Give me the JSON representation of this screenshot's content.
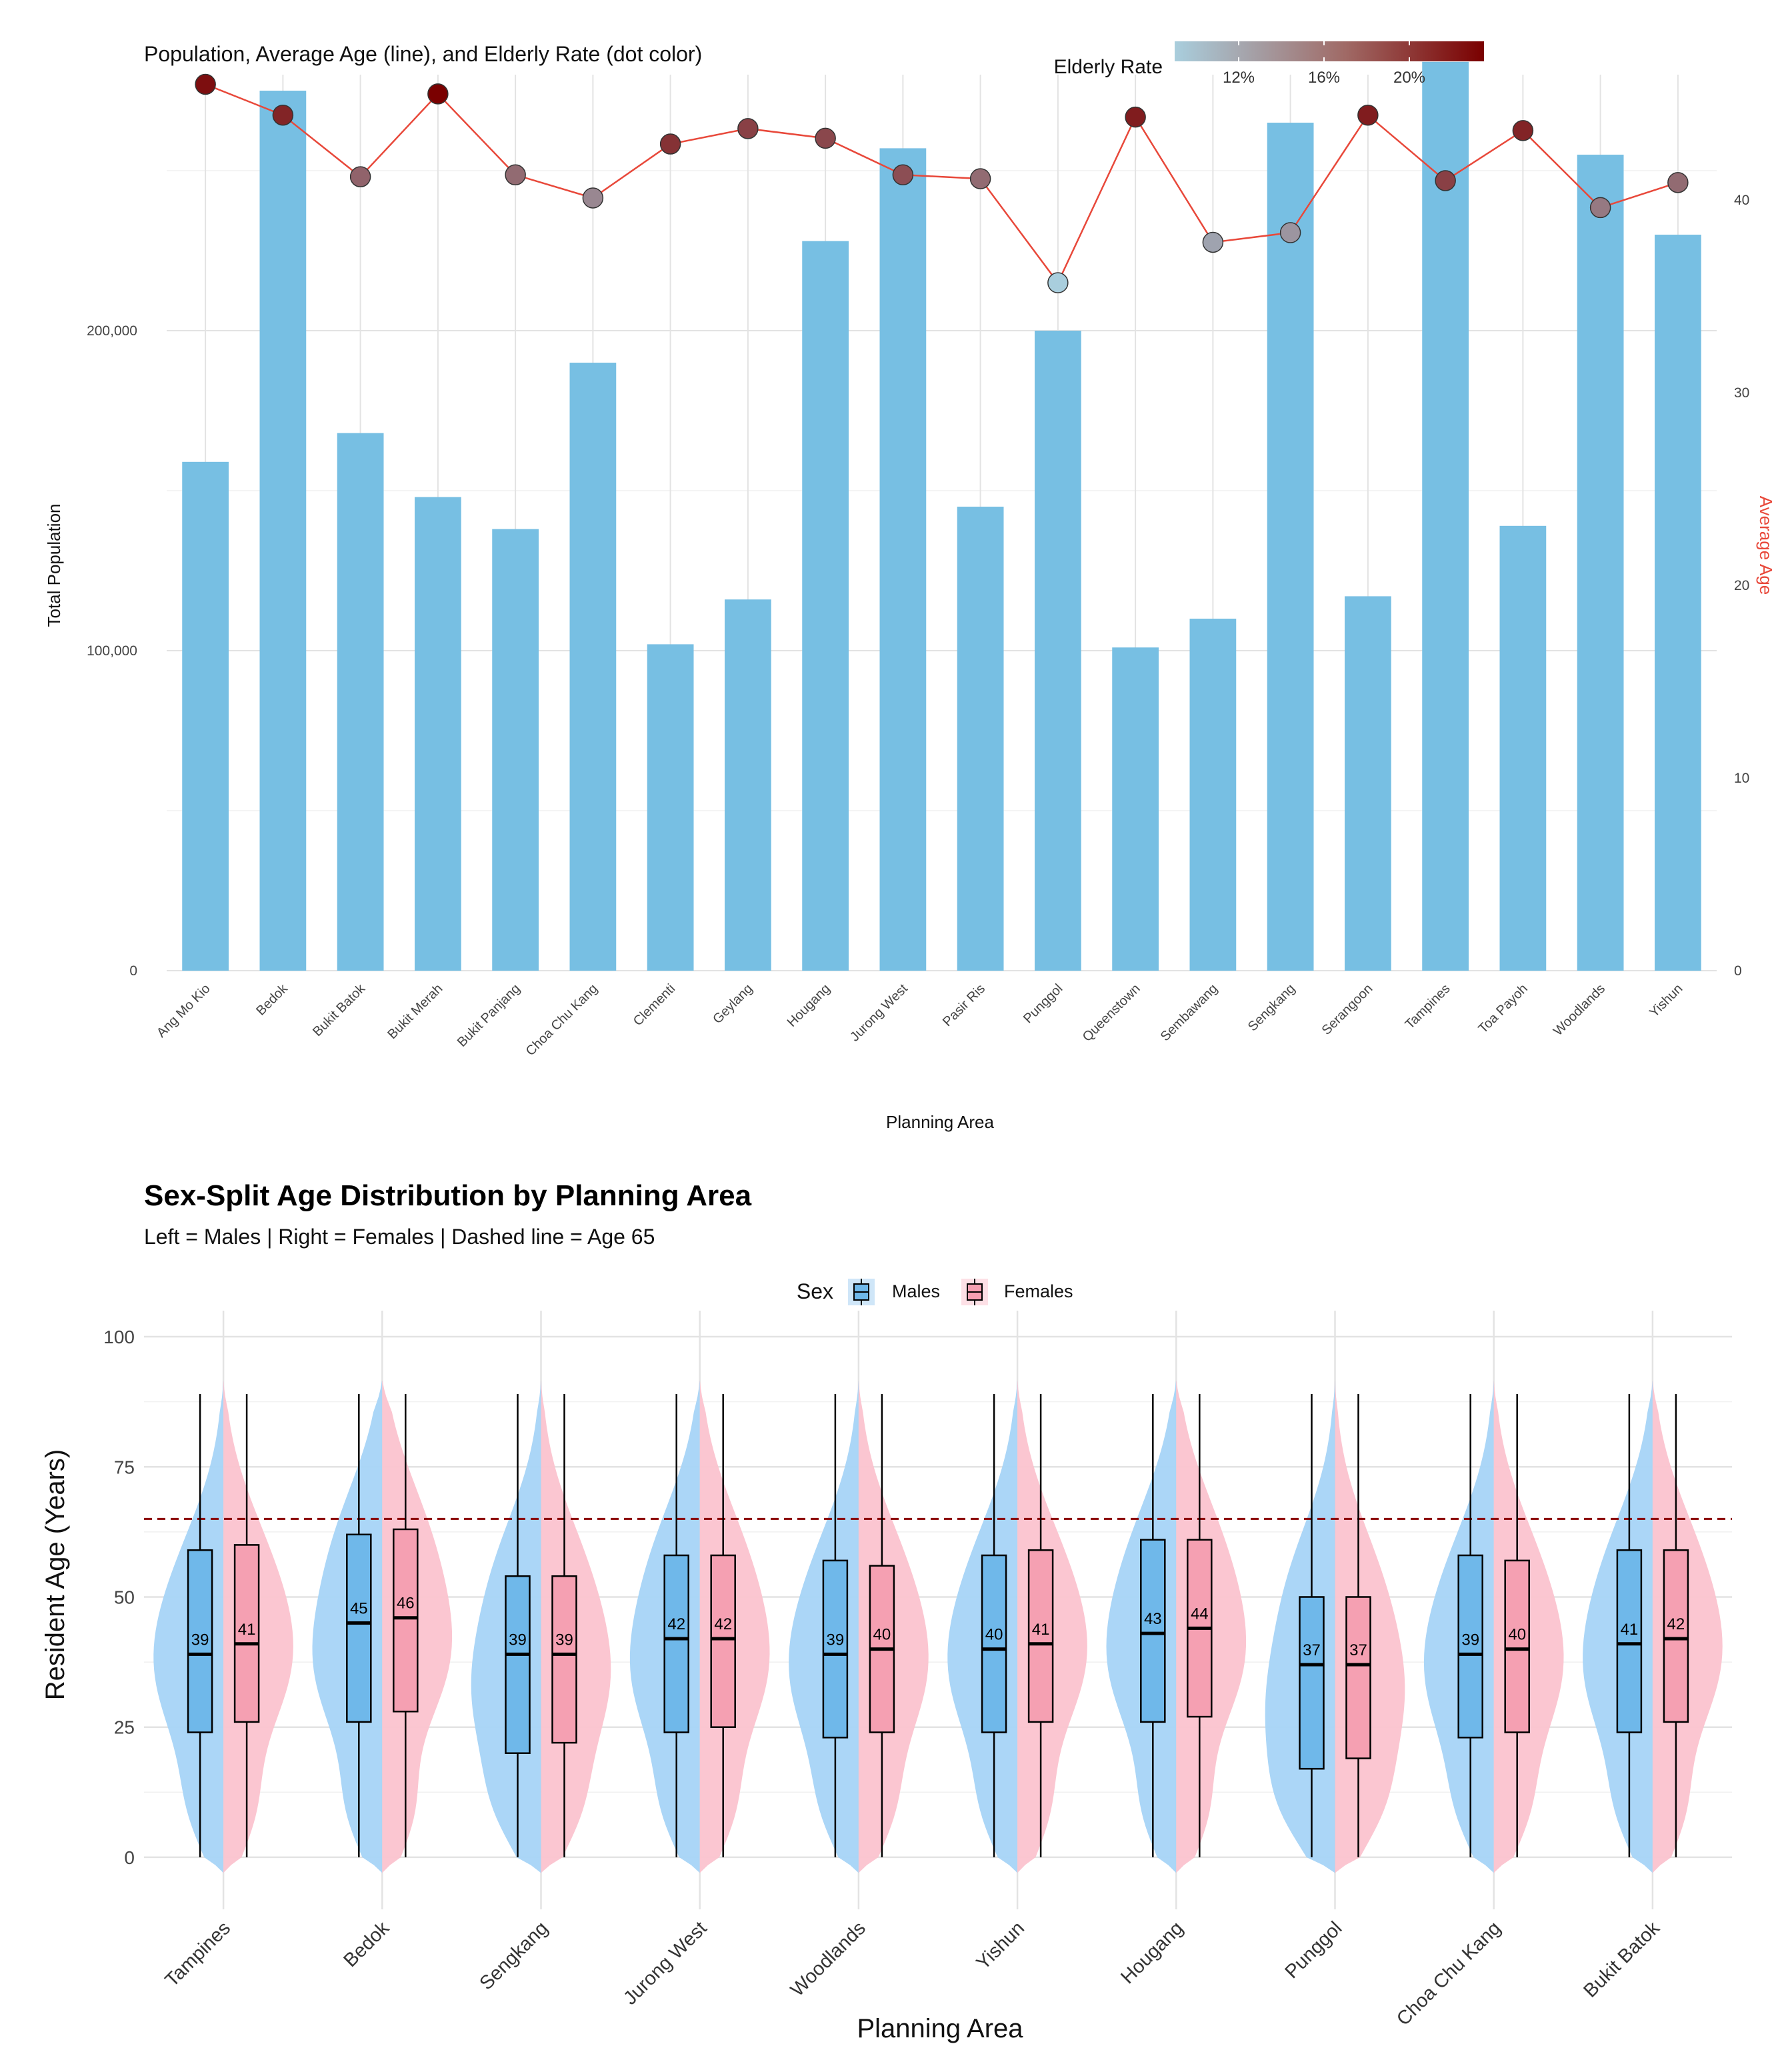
{
  "chart_data": [
    {
      "type": "bar",
      "title": "Population, Average Age (line), and Elderly Rate (dot color)",
      "xlabel": "Planning Area",
      "ylabel": "Total Population",
      "y2label": "Average Age",
      "ylim": [
        0,
        280000
      ],
      "y2lim": [
        0,
        46.5
      ],
      "yticks": [
        0,
        100000,
        200000
      ],
      "ytick_labels": [
        "0",
        "100,000",
        "200,000"
      ],
      "y2ticks": [
        0,
        10,
        20,
        30,
        40
      ],
      "y2tick_labels": [
        "0",
        "10",
        "20",
        "30",
        "40"
      ],
      "grid": true,
      "categories": [
        "Ang Mo Kio",
        "Bedok",
        "Bukit Batok",
        "Bukit Merah",
        "Bukit Panjang",
        "Choa Chu Kang",
        "Clementi",
        "Geylang",
        "Hougang",
        "Jurong West",
        "Pasir Ris",
        "Punggol",
        "Queenstown",
        "Sembawang",
        "Sengkang",
        "Serangoon",
        "Tampines",
        "Toa Payoh",
        "Woodlands",
        "Yishun"
      ],
      "series": [
        {
          "name": "Total Population",
          "kind": "bar",
          "color": "#77bfe3",
          "values": [
            159000,
            275000,
            168000,
            148000,
            138000,
            190000,
            102000,
            116000,
            228000,
            257000,
            145000,
            200000,
            101000,
            110000,
            265000,
            117000,
            284000,
            139000,
            255000,
            230000
          ]
        },
        {
          "name": "Average Age",
          "kind": "line",
          "color": "#e8483a",
          "values": [
            46.0,
            44.4,
            41.2,
            45.5,
            41.3,
            40.1,
            42.9,
            43.7,
            43.2,
            41.3,
            41.1,
            35.7,
            44.3,
            37.8,
            38.3,
            44.4,
            41.0,
            43.6,
            39.6,
            40.9
          ]
        },
        {
          "name": "Elderly Rate",
          "kind": "dot-color",
          "values": [
            0.225,
            0.21,
            0.165,
            0.235,
            0.16,
            0.14,
            0.2,
            0.19,
            0.185,
            0.18,
            0.16,
            0.09,
            0.215,
            0.12,
            0.13,
            0.215,
            0.19,
            0.21,
            0.15,
            0.16
          ]
        }
      ],
      "legend": {
        "title": "Elderly Rate",
        "placement": "top-right",
        "colorbar_ticks": [
          "12%",
          "16%",
          "20%"
        ],
        "colorbar_tick_values": [
          0.12,
          0.16,
          0.2
        ],
        "colorbar_range": [
          0.09,
          0.235
        ],
        "colors": [
          "#a9cedd",
          "#7a0000"
        ]
      }
    },
    {
      "type": "violin",
      "title": "Sex-Split Age Distribution by Planning Area",
      "subtitle": "Left = Males | Right = Females | Dashed line = Age 65",
      "xlabel": "Planning Area",
      "ylabel": "Resident Age (Years)",
      "ylim": [
        -10,
        105
      ],
      "yticks": [
        0,
        25,
        50,
        75,
        100
      ],
      "ytick_labels": [
        "0",
        "25",
        "50",
        "75",
        "100"
      ],
      "reference_line": {
        "y": 65,
        "style": "dashed",
        "color": "#8b0000"
      },
      "grid": true,
      "categories": [
        "Tampines",
        "Bedok",
        "Sengkang",
        "Jurong West",
        "Woodlands",
        "Yishun",
        "Hougang",
        "Punggol",
        "Choa Chu Kang",
        "Bukit Batok"
      ],
      "legend": {
        "title": "Sex",
        "placement": "top",
        "entries": [
          "Males",
          "Females"
        ]
      },
      "series": [
        {
          "name": "Males",
          "color": "#6fb8ea",
          "fill": "#a6d4f7",
          "median": [
            39,
            45,
            39,
            42,
            39,
            40,
            43,
            37,
            39,
            41
          ],
          "q1": [
            24,
            26,
            20,
            24,
            23,
            24,
            26,
            17,
            23,
            24
          ],
          "q3": [
            59,
            62,
            54,
            58,
            57,
            58,
            61,
            50,
            58,
            59
          ],
          "whisker_low": [
            0,
            0,
            0,
            0,
            0,
            0,
            0,
            0,
            0,
            0
          ],
          "whisker_high": [
            89,
            89,
            89,
            89,
            89,
            89,
            89,
            89,
            89,
            89
          ]
        },
        {
          "name": "Females",
          "color": "#f5a0b2",
          "fill": "#fbc3cf",
          "median": [
            41,
            46,
            39,
            42,
            40,
            41,
            44,
            37,
            40,
            42
          ],
          "q1": [
            26,
            28,
            22,
            25,
            24,
            26,
            27,
            19,
            24,
            26
          ],
          "q3": [
            60,
            63,
            54,
            58,
            56,
            59,
            61,
            50,
            57,
            59
          ],
          "whisker_low": [
            0,
            0,
            0,
            0,
            0,
            0,
            0,
            0,
            0,
            0
          ],
          "whisker_high": [
            89,
            89,
            89,
            89,
            89,
            89,
            89,
            89,
            89,
            89
          ]
        }
      ]
    }
  ]
}
